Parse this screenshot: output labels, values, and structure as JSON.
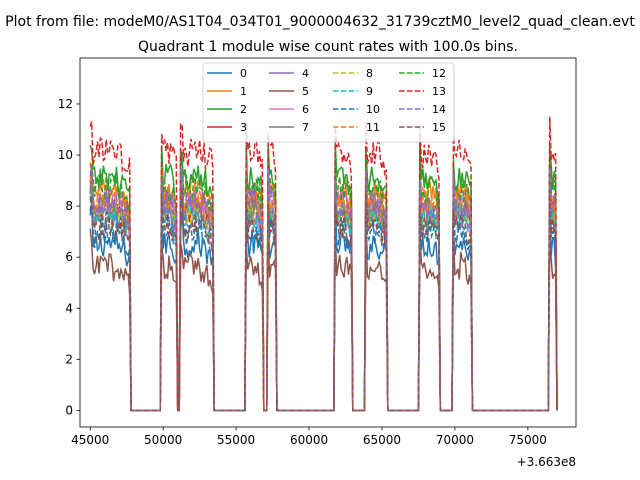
{
  "chart_data": {
    "type": "line",
    "suptitle": "Plot from file: modeM0/AS1T04_034T01_9000004632_31739cztM0_level2_quad_clean.evt",
    "title": "Quadrant 1 module wise count rates with 100.0s bins.",
    "xlabel": "",
    "ylabel": "",
    "x_offset_label": "+3.663e8",
    "xlim": [
      44300,
      78300
    ],
    "ylim": [
      -0.65,
      13.8
    ],
    "x_ticks": [
      45000,
      50000,
      55000,
      60000,
      65000,
      70000,
      75000
    ],
    "x_tick_labels": [
      "45000",
      "50000",
      "55000",
      "60000",
      "65000",
      "70000",
      "75000"
    ],
    "y_ticks": [
      0,
      2,
      4,
      6,
      8,
      10,
      12
    ],
    "y_tick_labels": [
      "0",
      "2",
      "4",
      "6",
      "8",
      "10",
      "12"
    ],
    "grid": false,
    "legend_position": "top-center",
    "legend_columns": 4,
    "bin_seconds": 100,
    "segments": [
      [
        45000,
        47700
      ],
      [
        49900,
        50900
      ],
      [
        51200,
        53400
      ],
      [
        55700,
        56800
      ],
      [
        57200,
        57700
      ],
      [
        61800,
        62900
      ],
      [
        63900,
        65300
      ],
      [
        67600,
        68900
      ],
      [
        69900,
        71100
      ],
      [
        76500,
        76900
      ]
    ],
    "series": [
      {
        "name": "0",
        "color": "#1f77b4",
        "dash": "solid",
        "mean": 6.3
      },
      {
        "name": "1",
        "color": "#ff7f0e",
        "dash": "solid",
        "mean": 8.3
      },
      {
        "name": "2",
        "color": "#2ca02c",
        "dash": "solid",
        "mean": 8.9
      },
      {
        "name": "3",
        "color": "#d62728",
        "dash": "solid",
        "mean": 7.6
      },
      {
        "name": "4",
        "color": "#9467bd",
        "dash": "solid",
        "mean": 7.4
      },
      {
        "name": "5",
        "color": "#8c564b",
        "dash": "solid",
        "mean": 5.4
      },
      {
        "name": "6",
        "color": "#e377c2",
        "dash": "solid",
        "mean": 7.9
      },
      {
        "name": "7",
        "color": "#7f7f7f",
        "dash": "solid",
        "mean": 7.7
      },
      {
        "name": "8",
        "color": "#bcbd22",
        "dash": "dashed",
        "mean": 7.5
      },
      {
        "name": "9",
        "color": "#17becf",
        "dash": "dashed",
        "mean": 7.3
      },
      {
        "name": "10",
        "color": "#1f77b4",
        "dash": "dashed",
        "mean": 6.8
      },
      {
        "name": "11",
        "color": "#ff7f0e",
        "dash": "dashed",
        "mean": 8.1
      },
      {
        "name": "12",
        "color": "#2ca02c",
        "dash": "dashed",
        "mean": 8.5
      },
      {
        "name": "13",
        "color": "#d62728",
        "dash": "dashed",
        "mean": 9.9
      },
      {
        "name": "14",
        "color": "#9467bd",
        "dash": "dashed",
        "mean": 7.9
      },
      {
        "name": "15",
        "color": "#8c564b",
        "dash": "dashed",
        "mean": 7.0
      }
    ]
  }
}
